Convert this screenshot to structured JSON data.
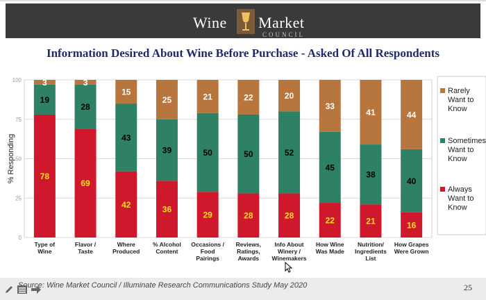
{
  "header": {
    "logo_word1": "Wine",
    "logo_word2": "Market",
    "logo_word3": "COUNCIL"
  },
  "title": "Information Desired About Wine Before Purchase - Asked Of All Respondents",
  "footer": {
    "source": "Source: Wine Market Council / Illuminate Research Communications Study May 2020",
    "page_number": "25"
  },
  "chart_data": {
    "type": "bar",
    "stacked": true,
    "ylabel": "% Responding",
    "ylim": [
      0,
      100
    ],
    "yticks": [
      0,
      25,
      50,
      75,
      100
    ],
    "grid": true,
    "legend_position": "right",
    "categories": [
      [
        "Type of",
        "Wine"
      ],
      [
        "Flavor /",
        "Taste"
      ],
      [
        "Where",
        "Produced"
      ],
      [
        "% Alcohol",
        "Content"
      ],
      [
        "Occasions /",
        "Food",
        "Pairings"
      ],
      [
        "Reviews,",
        "Ratings,",
        "Awards"
      ],
      [
        "Info About",
        "Winery /",
        "Winemakers"
      ],
      [
        "How Wine",
        "Was Made"
      ],
      [
        "Nutrition/",
        "Ingredients",
        "List"
      ],
      [
        "How Grapes",
        "Were Grown"
      ]
    ],
    "series": [
      {
        "name": [
          "Always",
          "Want to",
          "Know"
        ],
        "color": "#d0182c",
        "label_color": "#ffe11a",
        "values": [
          78,
          69,
          42,
          36,
          29,
          28,
          28,
          22,
          21,
          16
        ]
      },
      {
        "name": [
          "Sometimes",
          "Want to",
          "Know"
        ],
        "color": "#2f8166",
        "label_color": "#000000",
        "values": [
          19,
          28,
          43,
          39,
          50,
          50,
          52,
          45,
          38,
          40
        ]
      },
      {
        "name": [
          "Rarely",
          "Want to",
          "Know"
        ],
        "color": "#b6763e",
        "label_color": "#ffffff",
        "values": [
          3,
          3,
          15,
          25,
          21,
          22,
          20,
          33,
          41,
          44
        ]
      }
    ]
  }
}
